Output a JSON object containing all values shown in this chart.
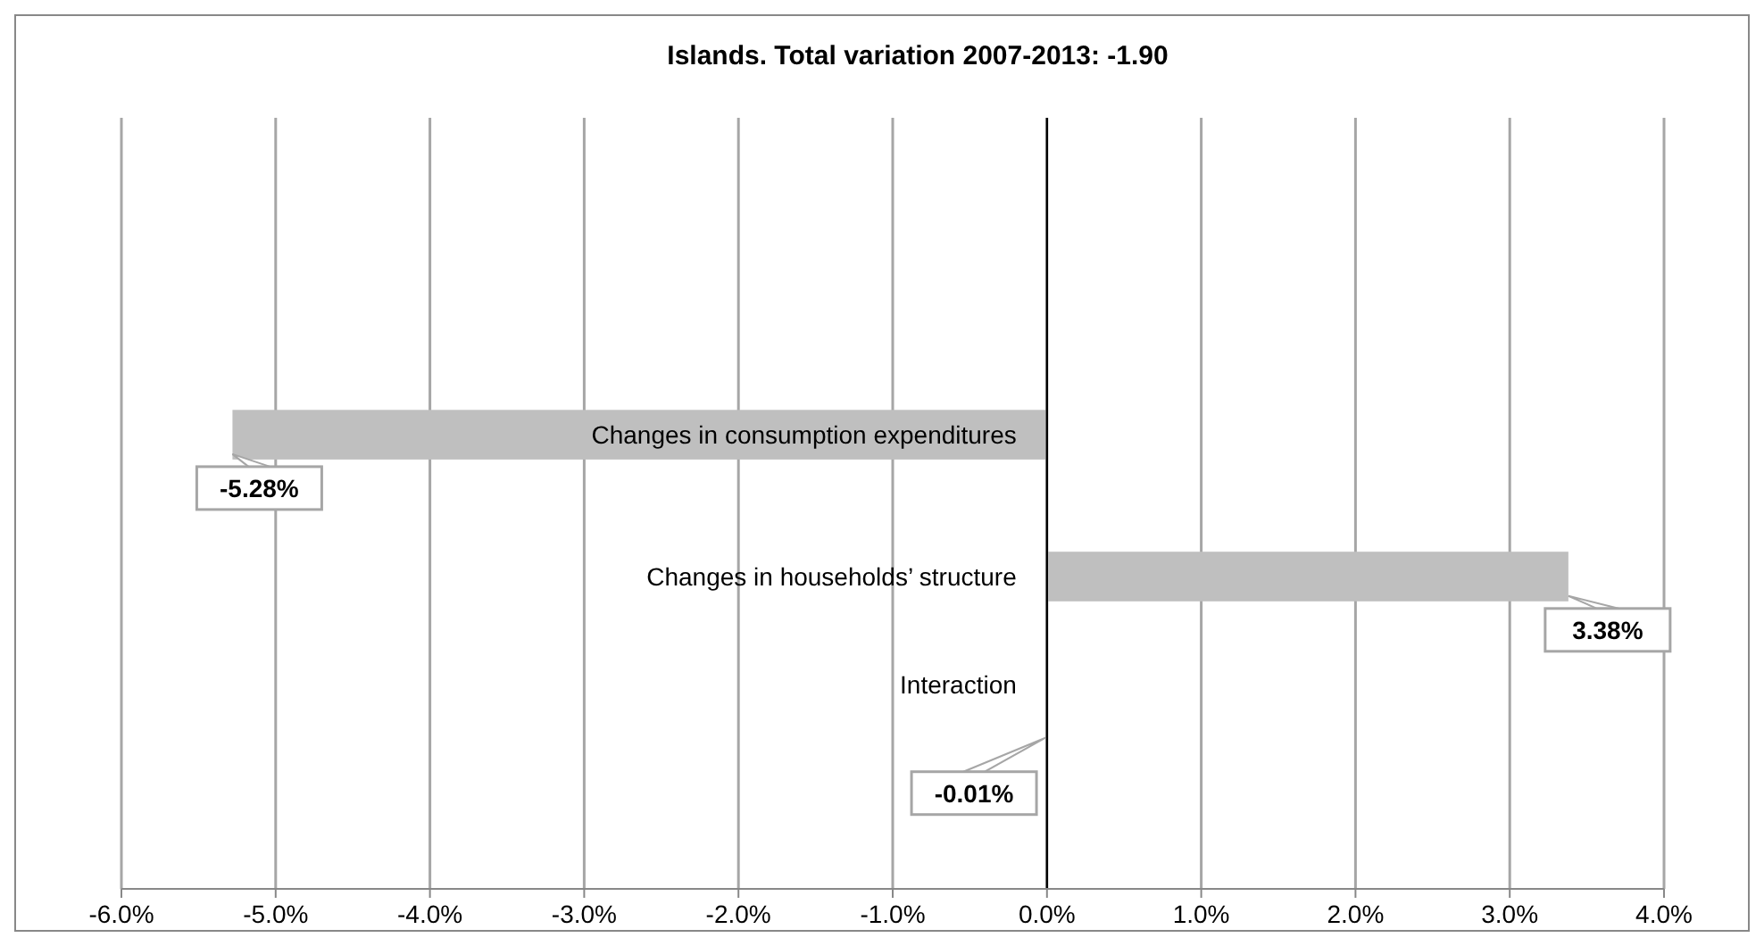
{
  "chart_data": {
    "type": "bar",
    "orientation": "horizontal",
    "title": "Islands. Total variation 2007-2013: -1.90",
    "categories": [
      "Changes in consumption expenditures",
      "Changes in households’ structure",
      "Interaction"
    ],
    "values": [
      -5.28,
      3.38,
      -0.01
    ],
    "color": "#bfbfbf",
    "value_labels": [
      "-5.28%",
      "3.38%",
      "-0.01%"
    ],
    "xlim": [
      -6,
      4
    ],
    "xticks": [
      {
        "value": -6,
        "label": "-6.0%"
      },
      {
        "value": -5,
        "label": "-5.0%"
      },
      {
        "value": -4,
        "label": "-4.0%"
      },
      {
        "value": -3,
        "label": "-3.0%"
      },
      {
        "value": -2,
        "label": "-2.0%"
      },
      {
        "value": -1,
        "label": "-1.0%"
      },
      {
        "value": 0,
        "label": "0.0%"
      },
      {
        "value": 1,
        "label": "1.0%"
      },
      {
        "value": 2,
        "label": "2.0%"
      },
      {
        "value": 3,
        "label": "3.0%"
      },
      {
        "value": 4,
        "label": "4.0%"
      }
    ],
    "grid": "x"
  }
}
